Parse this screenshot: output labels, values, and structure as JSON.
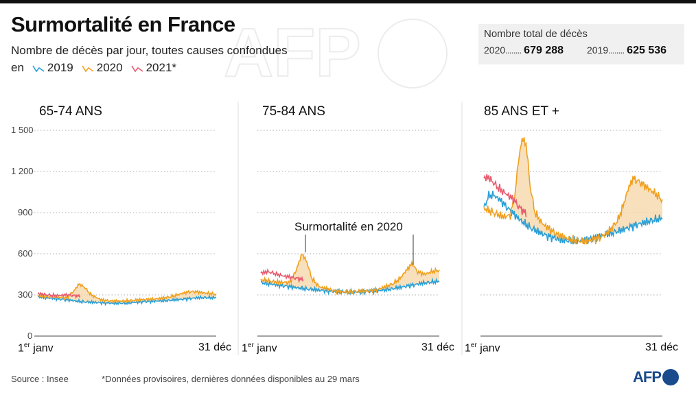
{
  "title": "Surmortalité en France",
  "subtitle": "Nombre de décès par jour, toutes causes confondues",
  "legend": {
    "prefix": "en",
    "items": [
      {
        "label": "2019",
        "color": "#2a9fd6"
      },
      {
        "label": "2020",
        "color": "#f0a020"
      },
      {
        "label": "2021*",
        "color": "#e85a6e"
      }
    ]
  },
  "totals": {
    "heading": "Nombre total de décès",
    "y2020_label": "2020",
    "y2020_value": "679 288",
    "y2019_label": "2019",
    "y2019_value": "625 536",
    "dots": "........"
  },
  "x_start_label": {
    "main": "janv",
    "prefix": "1",
    "sup": "er"
  },
  "x_end_label": "31 déc",
  "y_ticks": [
    "1 500",
    "1 200",
    "900",
    "600",
    "300",
    "0"
  ],
  "annotation": "Surmortalité en 2020",
  "footer": {
    "source": "Source : Insee",
    "note": "*Données provisoires, dernières données disponibles au 29 mars"
  },
  "logo": {
    "text": "AFP",
    "watermark": "AFP"
  },
  "chart_data": [
    {
      "type": "line",
      "title": "65-74 ANS",
      "ylim": [
        0,
        1500
      ],
      "x_domain": [
        "1er janv",
        "31 déc"
      ],
      "series": [
        {
          "name": "2019",
          "color": "#2a9fd6",
          "x_day": [
            1,
            30,
            60,
            90,
            120,
            150,
            180,
            210,
            240,
            270,
            300,
            330,
            365
          ],
          "values": [
            285,
            275,
            265,
            250,
            245,
            240,
            240,
            250,
            255,
            260,
            270,
            280,
            280
          ]
        },
        {
          "name": "2020",
          "color": "#f0a020",
          "x_day": [
            1,
            30,
            60,
            75,
            85,
            95,
            110,
            130,
            150,
            180,
            210,
            240,
            270,
            290,
            305,
            320,
            340,
            365
          ],
          "values": [
            295,
            285,
            280,
            330,
            380,
            360,
            300,
            265,
            255,
            255,
            265,
            270,
            285,
            305,
            320,
            325,
            315,
            305
          ]
        },
        {
          "name": "2021*",
          "color": "#e85a6e",
          "x_day": [
            1,
            20,
            40,
            60,
            75,
            88
          ],
          "values": [
            310,
            300,
            295,
            300,
            295,
            290
          ]
        }
      ]
    },
    {
      "type": "line",
      "title": "75-84 ANS",
      "ylim": [
        0,
        1500
      ],
      "x_domain": [
        "1er janv",
        "31 déc"
      ],
      "series": [
        {
          "name": "2019",
          "color": "#2a9fd6",
          "x_day": [
            1,
            30,
            60,
            90,
            120,
            150,
            180,
            210,
            240,
            270,
            300,
            330,
            365
          ],
          "values": [
            390,
            375,
            360,
            345,
            335,
            325,
            320,
            325,
            330,
            345,
            365,
            385,
            400
          ]
        },
        {
          "name": "2020",
          "color": "#f0a020",
          "x_day": [
            1,
            30,
            60,
            72,
            85,
            95,
            105,
            120,
            150,
            180,
            210,
            240,
            270,
            285,
            300,
            310,
            320,
            335,
            350,
            365
          ],
          "values": [
            410,
            395,
            390,
            470,
            600,
            540,
            420,
            360,
            330,
            320,
            325,
            340,
            380,
            420,
            490,
            530,
            470,
            450,
            470,
            480
          ]
        },
        {
          "name": "2021*",
          "color": "#e85a6e",
          "x_day": [
            1,
            15,
            30,
            45,
            60,
            75,
            88
          ],
          "values": [
            460,
            470,
            455,
            440,
            430,
            420,
            410
          ]
        }
      ]
    },
    {
      "type": "line",
      "title": "85 ANS ET +",
      "ylim": [
        0,
        1500
      ],
      "x_domain": [
        "1er janv",
        "31 déc"
      ],
      "series": [
        {
          "name": "2019",
          "color": "#2a9fd6",
          "x_day": [
            1,
            10,
            20,
            35,
            50,
            65,
            80,
            100,
            130,
            160,
            190,
            220,
            250,
            280,
            310,
            340,
            365
          ],
          "values": [
            930,
            1020,
            1030,
            990,
            930,
            880,
            830,
            780,
            730,
            700,
            690,
            710,
            740,
            770,
            810,
            840,
            860
          ]
        },
        {
          "name": "2020",
          "color": "#f0a020",
          "x_day": [
            1,
            20,
            40,
            55,
            65,
            72,
            80,
            88,
            95,
            105,
            120,
            150,
            180,
            210,
            240,
            260,
            275,
            285,
            295,
            305,
            320,
            335,
            350,
            365
          ],
          "values": [
            930,
            900,
            870,
            880,
            1050,
            1300,
            1450,
            1380,
            1100,
            900,
            820,
            740,
            700,
            690,
            720,
            780,
            850,
            950,
            1070,
            1150,
            1120,
            1080,
            1040,
            990
          ]
        },
        {
          "name": "2021*",
          "color": "#e85a6e",
          "x_day": [
            1,
            10,
            20,
            30,
            45,
            60,
            75,
            88
          ],
          "values": [
            1150,
            1160,
            1120,
            1080,
            1040,
            1000,
            930,
            890
          ]
        }
      ]
    }
  ]
}
